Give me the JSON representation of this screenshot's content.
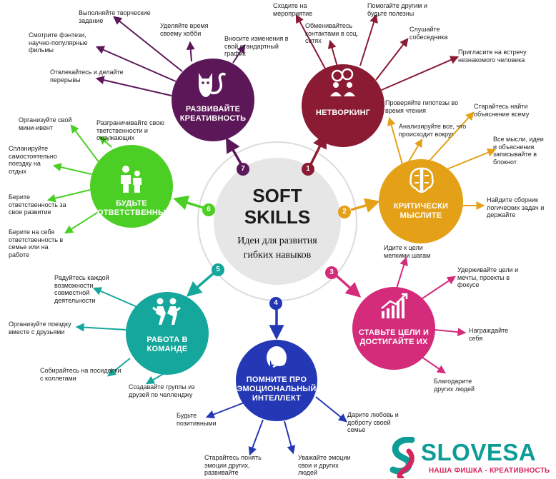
{
  "center": {
    "title": "SOFT SKILLS",
    "subtitle": "Идеи для развития гибких навыков"
  },
  "colors": {
    "networking": "#8b1a33",
    "critical": "#e4a117",
    "goals": "#d42b7a",
    "emotional": "#2437b4",
    "team": "#15a79c",
    "responsible": "#4ccf24",
    "creative": "#5b1757",
    "ring": "#d9d9d9",
    "center": "#e6e6e6"
  },
  "nodes": [
    {
      "number": "1",
      "label": "НЕТВОРКИНГ",
      "icon": "people-talking-icon",
      "tips": [
        "Сходите на мероприятие",
        "Обменивайтесь контактами в соц. сетях",
        "Помогайте другим и будьте полезны",
        "Слушайте собеседника",
        "Пригласите  на встречу незнакомого человека"
      ]
    },
    {
      "number": "2",
      "label": "КРИТИЧЕСКИ МЫСЛИТЕ",
      "icon": "brain-icon",
      "tips": [
        "Проверяйте гипотезы во время чтения",
        "Анализируйте все, что происходит  вокруг",
        "Старайтесь  найти объяснение всему",
        "Все мысли, идеи и объяснения записывайте в блокнот",
        "Найдите сборник логических задач и держайте"
      ]
    },
    {
      "number": "3",
      "label": "СТАВЬТЕ ЦЕЛИ И ДОСТИГАЙТЕ ИХ",
      "icon": "growth-chart-icon",
      "tips": [
        "Идите к цели мелкими шагам",
        "Удерживайте цели и мечты, проекты в фокусе",
        "Награждайте себя",
        "Благодарите других людей"
      ]
    },
    {
      "number": "4",
      "label": "ПОМНИТЕ ПРО ЭМОЦИОНАЛЬНЫЙ ИНТЕЛЛЕКТ",
      "icon": "face-palm-icon",
      "tips": [
        "Будьте позитивными",
        "Старайтесь понять эмоции других, развивайте",
        "Уважайте эмоции свои и других людей",
        "Дарите  любовь и доброту своей семье"
      ]
    },
    {
      "number": "5",
      "label": "РАБОТА В КОМАНДЕ",
      "icon": "teamwork-icon",
      "tips": [
        "Радуйтесь каждой возможности совместной деятельности",
        "Организуйте поездку вместе с друзьями",
        "Собирайтесь на посиделки с коллегами",
        "Создавайте группы из друзей по челленджу"
      ]
    },
    {
      "number": "6",
      "label": "БУДЬТЕ ОТВЕТСТВЕННЫ",
      "icon": "family-icon",
      "tips": [
        "Организуйте свой мини-ивент",
        "Спланируйте самостоятельно поездку на отдых",
        "Берите ответственность за свое развитие",
        "Берите на себя ответственность в семье или на работе",
        "Разграничивайте свою тветственности и окружающих"
      ]
    },
    {
      "number": "7",
      "label": "РАЗВИВАЙТЕ КРЕАТИВНОСТЬ",
      "icon": "cat-icon",
      "tips": [
        "Выполняйте творческие задание",
        "Смотрите фэнтези, научно-популярные фильмы",
        "Отвлекайтесь и делайте перерывы",
        "Уделяйте время своему хобби",
        "Вносите изменения в свой стандартный график"
      ]
    }
  ],
  "logo": {
    "name": "SLOVESA",
    "tagline": "НАША ФИШКА - КРЕАТИВНОСТЬ",
    "icon": "slovesa-s-logo-icon"
  }
}
